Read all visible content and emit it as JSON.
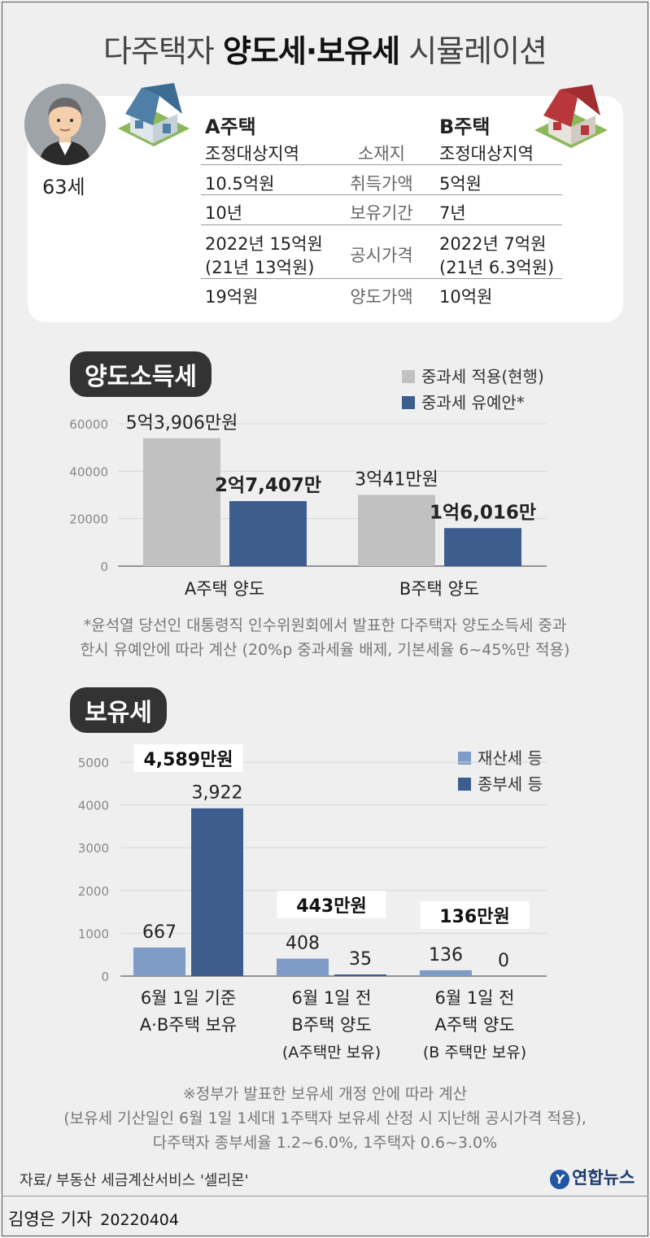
{
  "title": {
    "pre": "다주택자 ",
    "bold": "양도세·보유세",
    "post": " 시뮬레이션"
  },
  "person": {
    "age": "63세",
    "icon": "person-avatar-icon"
  },
  "houses": {
    "a": {
      "name": "A주택",
      "region": "조정대상지역",
      "acq": "10.5억원",
      "hold": "10년",
      "pub1": "2022년 15억원",
      "pub2": "(21년 13억원)",
      "sale": "19억원",
      "icon": "house-blue-icon"
    },
    "b": {
      "name": "B주택",
      "region": "조정대상지역",
      "acq": "5억원",
      "hold": "7년",
      "pub1": "2022년 7억원",
      "pub2": "(21년 6.3억원)",
      "sale": "10억원",
      "icon": "house-red-icon"
    }
  },
  "rows": {
    "loc": "소재지",
    "acq": "취득가액",
    "hold": "보유기간",
    "pub": "공시가격",
    "sale": "양도가액"
  },
  "section1": {
    "label": "양도소득세",
    "legend": [
      "중과세 적용(현행)",
      "중과세 유예안*"
    ],
    "note1": "*윤석열 당선인 대통령직 인수위원회에서 발표한 다주택자 양도소득세 중과",
    "note2": "한시 유예안에 따라 계산 (20%p 중과세율 배제, 기본세율 6~45%만 적용)"
  },
  "section2": {
    "label": "보유세",
    "legend": [
      "재산세 등",
      "종부세 등"
    ],
    "note1": "※정부가 발표한 보유세 개정 안에 따라 계산",
    "note2": "(보유세 기산일인 6월 1일 1세대 1주택자 보유세 산정 시 지난해 공시가격 적용),",
    "note3": "다주택자 종부세율 1.2~6.0%, 1주택자 0.6~3.0%"
  },
  "chart_data": [
    {
      "type": "bar",
      "title": "양도소득세",
      "categories": [
        "A주택 양도",
        "B주택 양도"
      ],
      "series": [
        {
          "name": "중과세 적용(현행)",
          "values": [
            53906,
            30041
          ],
          "labels": [
            "5억3,906만원",
            "3억41만원"
          ]
        },
        {
          "name": "중과세 유예안*",
          "values": [
            27407,
            16016
          ],
          "labels": [
            "2억7,407만",
            "1억6,016만"
          ]
        }
      ],
      "yticks": [
        "0",
        "20000",
        "40000",
        "60000"
      ],
      "ylim": [
        0,
        60000
      ],
      "colors": [
        "#c1c1c1",
        "#3d5d8f"
      ]
    },
    {
      "type": "bar",
      "title": "보유세",
      "categories": [
        [
          "6월 1일 기준",
          "A·B주택 보유"
        ],
        [
          "6월 1일 전",
          "B주택 양도",
          "(A주택만 보유)"
        ],
        [
          "6월 1일 전",
          "A주택 양도",
          "(B 주택만 보유)"
        ]
      ],
      "series": [
        {
          "name": "재산세 등",
          "values": [
            667,
            408,
            136
          ],
          "labels": [
            "667",
            "408",
            "136"
          ]
        },
        {
          "name": "종부세 등",
          "values": [
            3922,
            35,
            0
          ],
          "labels": [
            "3,922",
            "35",
            "0"
          ]
        }
      ],
      "totals": [
        "4,589만원",
        "443만원",
        "136만원"
      ],
      "yticks": [
        "0",
        "1000",
        "2000",
        "3000",
        "4000",
        "5000"
      ],
      "ylim": [
        0,
        5000
      ],
      "colors": [
        "#7e9cc6",
        "#3d5d8f"
      ]
    }
  ],
  "footer": {
    "source": "자료/ 부동산 세금계산서비스 '셀리몬'",
    "logo": "연합뉴스",
    "reporter": "김영은 기자",
    "date": "20220404"
  }
}
